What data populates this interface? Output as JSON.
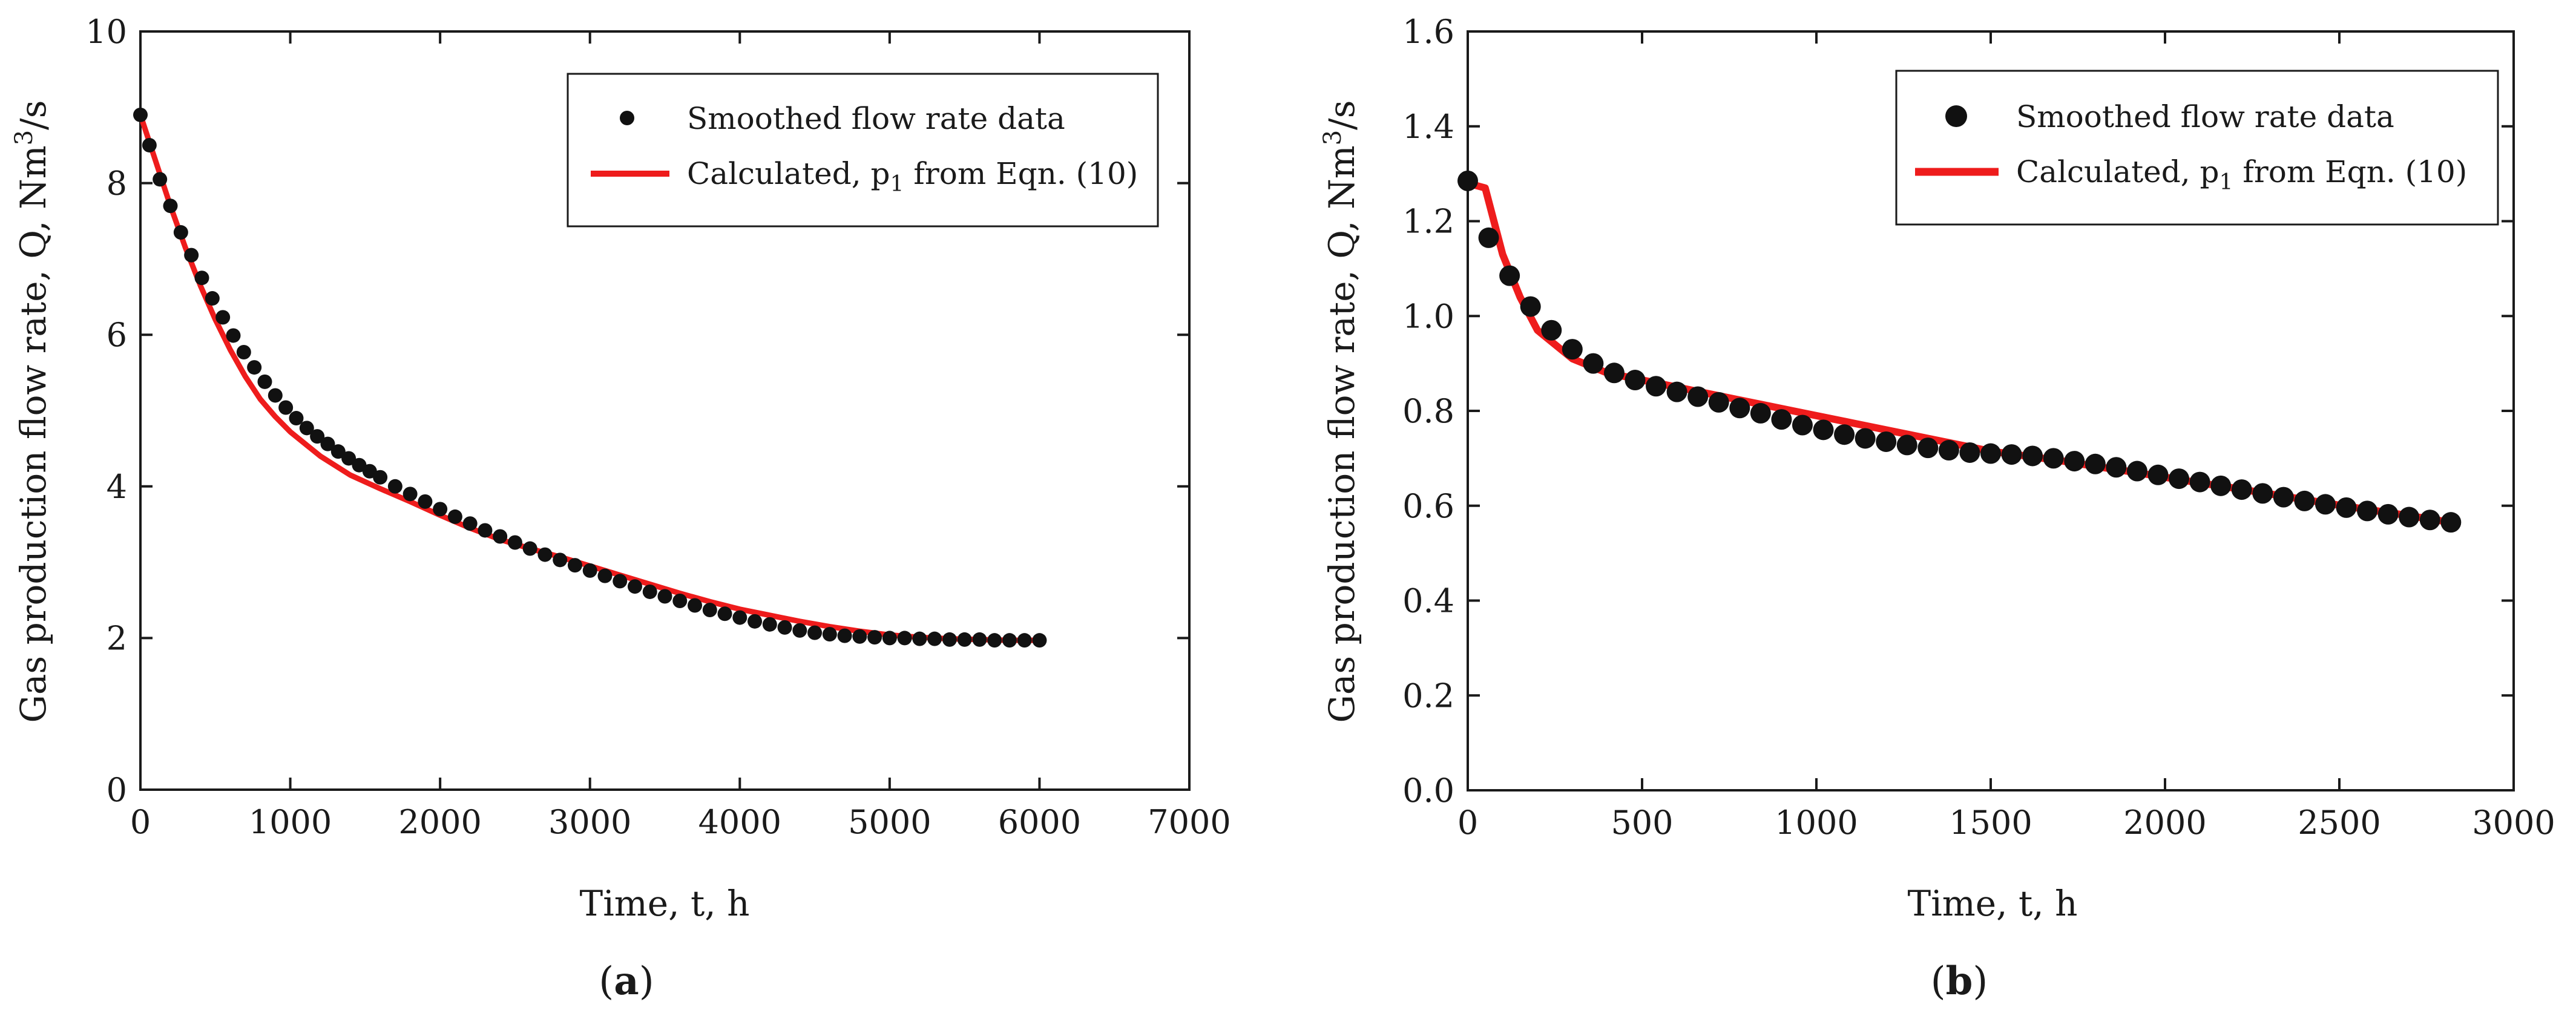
{
  "chart_data": [
    {
      "panel": "a",
      "type": "scatter",
      "panel_label": "a",
      "xlabel": "Time, t, h",
      "ylabel": "Gas production flow rate, Q, Nm³/s",
      "ylabel_parts": {
        "pre": "Gas production flow rate, Q, Nm",
        "sup": "3",
        "post": "/s"
      },
      "xlim": [
        0,
        7000
      ],
      "ylim": [
        0,
        10
      ],
      "xticks": [
        0,
        1000,
        2000,
        3000,
        4000,
        5000,
        6000,
        7000
      ],
      "yticks": [
        0,
        2,
        4,
        6,
        8,
        10
      ],
      "legend_position": "top-right",
      "series": [
        {
          "name": "Smoothed flow rate data",
          "kind": "scatter",
          "color": "#111111",
          "x": [
            0,
            60,
            130,
            200,
            270,
            340,
            410,
            480,
            550,
            620,
            690,
            760,
            830,
            900,
            970,
            1040,
            1110,
            1180,
            1250,
            1320,
            1390,
            1460,
            1530,
            1600,
            1700,
            1800,
            1900,
            2000,
            2100,
            2200,
            2300,
            2400,
            2500,
            2600,
            2700,
            2800,
            2900,
            3000,
            3100,
            3200,
            3300,
            3400,
            3500,
            3600,
            3700,
            3800,
            3900,
            4000,
            4100,
            4200,
            4300,
            4400,
            4500,
            4600,
            4700,
            4800,
            4900,
            5000,
            5100,
            5200,
            5300,
            5400,
            5500,
            5600,
            5700,
            5800,
            5900,
            6000
          ],
          "y": [
            8.9,
            8.5,
            8.05,
            7.7,
            7.35,
            7.05,
            6.75,
            6.48,
            6.23,
            5.99,
            5.77,
            5.57,
            5.38,
            5.2,
            5.04,
            4.9,
            4.77,
            4.66,
            4.56,
            4.46,
            4.37,
            4.28,
            4.2,
            4.12,
            4.0,
            3.9,
            3.8,
            3.7,
            3.6,
            3.51,
            3.42,
            3.34,
            3.26,
            3.18,
            3.1,
            3.03,
            2.96,
            2.89,
            2.82,
            2.75,
            2.68,
            2.61,
            2.55,
            2.49,
            2.43,
            2.37,
            2.32,
            2.27,
            2.22,
            2.18,
            2.14,
            2.1,
            2.07,
            2.05,
            2.03,
            2.02,
            2.01,
            2.0,
            2.0,
            1.99,
            1.99,
            1.98,
            1.98,
            1.98,
            1.97,
            1.97,
            1.97,
            1.97
          ]
        },
        {
          "name": "Calculated, p₁ from Eqn. (10)",
          "name_parts": {
            "pre": "Calculated, p",
            "sub": "1",
            "post": " from Eqn. (10)"
          },
          "kind": "line",
          "color": "#ee1c1c",
          "x": [
            0,
            100,
            200,
            300,
            400,
            500,
            600,
            700,
            800,
            900,
            1000,
            1200,
            1400,
            1600,
            1800,
            2000,
            2200,
            2400,
            2600,
            2800,
            3000,
            3200,
            3400,
            3600,
            3800,
            4000,
            4200,
            4400,
            4600,
            4800,
            5000,
            5200,
            5400,
            5600,
            5800,
            6000
          ],
          "y": [
            8.9,
            8.3,
            7.7,
            7.15,
            6.65,
            6.2,
            5.8,
            5.45,
            5.15,
            4.92,
            4.72,
            4.4,
            4.15,
            3.97,
            3.8,
            3.62,
            3.45,
            3.3,
            3.18,
            3.07,
            2.95,
            2.83,
            2.71,
            2.59,
            2.48,
            2.38,
            2.3,
            2.22,
            2.15,
            2.09,
            2.04,
            2.01,
            1.99,
            1.98,
            1.97,
            1.97
          ]
        }
      ]
    },
    {
      "panel": "b",
      "type": "scatter",
      "panel_label": "b",
      "xlabel": "Time, t, h",
      "ylabel": "Gas production flow rate, Q, Nm³/s",
      "ylabel_parts": {
        "pre": "Gas production flow rate, Q, Nm",
        "sup": "3",
        "post": "/s"
      },
      "xlim": [
        0,
        3000
      ],
      "ylim": [
        0,
        1.6
      ],
      "xticks": [
        0,
        500,
        1000,
        1500,
        2000,
        2500,
        3000
      ],
      "yticks": [
        0.0,
        0.2,
        0.4,
        0.6,
        0.8,
        1.0,
        1.2,
        1.4,
        1.6
      ],
      "ytick_decimals": 1,
      "legend_position": "top-right",
      "series": [
        {
          "name": "Smoothed flow rate data",
          "kind": "scatter",
          "color": "#111111",
          "x": [
            0,
            60,
            120,
            180,
            240,
            300,
            360,
            420,
            480,
            540,
            600,
            660,
            720,
            780,
            840,
            900,
            960,
            1020,
            1080,
            1140,
            1200,
            1260,
            1320,
            1380,
            1440,
            1500,
            1560,
            1620,
            1680,
            1740,
            1800,
            1860,
            1920,
            1980,
            2040,
            2100,
            2160,
            2220,
            2280,
            2340,
            2400,
            2460,
            2520,
            2580,
            2640,
            2700,
            2760,
            2820
          ],
          "y": [
            1.285,
            1.165,
            1.085,
            1.02,
            0.97,
            0.93,
            0.9,
            0.88,
            0.865,
            0.852,
            0.84,
            0.83,
            0.818,
            0.806,
            0.795,
            0.782,
            0.77,
            0.76,
            0.75,
            0.742,
            0.735,
            0.728,
            0.722,
            0.717,
            0.712,
            0.71,
            0.708,
            0.705,
            0.7,
            0.694,
            0.688,
            0.681,
            0.673,
            0.665,
            0.657,
            0.65,
            0.642,
            0.634,
            0.626,
            0.618,
            0.61,
            0.603,
            0.596,
            0.589,
            0.582,
            0.576,
            0.57,
            0.565
          ]
        },
        {
          "name": "Calculated, p₁ from Eqn. (10)",
          "name_parts": {
            "pre": "Calculated, p",
            "sub": "1",
            "post": " from Eqn. (10)"
          },
          "kind": "line",
          "color": "#ee1c1c",
          "x": [
            0,
            50,
            100,
            150,
            200,
            250,
            300,
            350,
            400,
            500,
            600,
            700,
            800,
            900,
            1000,
            1100,
            1200,
            1300,
            1400,
            1500,
            1600,
            1700,
            1800,
            1900,
            2000,
            2100,
            2200,
            2300,
            2400,
            2500,
            2600,
            2700,
            2820
          ],
          "y": [
            1.28,
            1.27,
            1.13,
            1.04,
            0.97,
            0.94,
            0.91,
            0.895,
            0.88,
            0.865,
            0.85,
            0.835,
            0.82,
            0.805,
            0.79,
            0.775,
            0.76,
            0.745,
            0.73,
            0.715,
            0.705,
            0.695,
            0.683,
            0.672,
            0.66,
            0.648,
            0.637,
            0.625,
            0.613,
            0.601,
            0.59,
            0.579,
            0.565
          ]
        }
      ]
    }
  ]
}
